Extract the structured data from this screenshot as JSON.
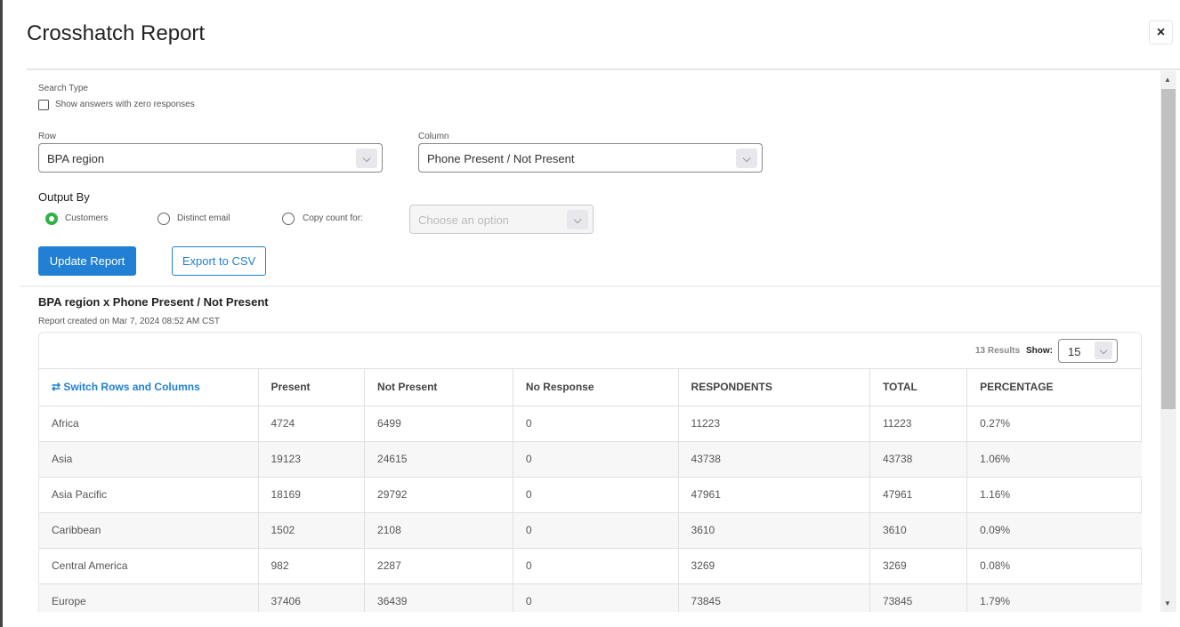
{
  "modal": {
    "title": "Crosshatch Report",
    "close": "×"
  },
  "form": {
    "search_type_label": "Search Type",
    "zero_responses_label": "Show answers with zero responses",
    "row_label": "Row",
    "row_value": "BPA region",
    "column_label": "Column",
    "column_value": "Phone Present / Not Present",
    "output_by_label": "Output By",
    "output_options": [
      "Customers",
      "Distinct email",
      "Copy count for:"
    ],
    "output_selected": "Customers",
    "copy_count_placeholder": "Choose an option",
    "update_button": "Update Report",
    "export_button": "Export to CSV"
  },
  "report": {
    "title": "BPA region x Phone Present / Not Present",
    "created": "Report created on Mar 7, 2024 08:52 AM CST",
    "results": "13 Results",
    "show_label": "Show:",
    "show_value": "15",
    "switch_label": "Switch Rows and Columns",
    "columns": [
      "Present",
      "Not Present",
      "No Response",
      "RESPONDENTS",
      "TOTAL",
      "PERCENTAGE"
    ],
    "rows": [
      [
        "Africa",
        "4724",
        "6499",
        "0",
        "11223",
        "11223",
        "0.27%"
      ],
      [
        "Asia",
        "19123",
        "24615",
        "0",
        "43738",
        "43738",
        "1.06%"
      ],
      [
        "Asia Pacific",
        "18169",
        "29792",
        "0",
        "47961",
        "47961",
        "1.16%"
      ],
      [
        "Caribbean",
        "1502",
        "2108",
        "0",
        "3610",
        "3610",
        "0.09%"
      ],
      [
        "Central America",
        "982",
        "2287",
        "0",
        "3269",
        "3269",
        "0.08%"
      ],
      [
        "Europe",
        "37406",
        "36439",
        "0",
        "73845",
        "73845",
        "1.79%"
      ]
    ]
  },
  "colors": {
    "primary": "#2180d3",
    "radio_selected": "#2fb344"
  }
}
